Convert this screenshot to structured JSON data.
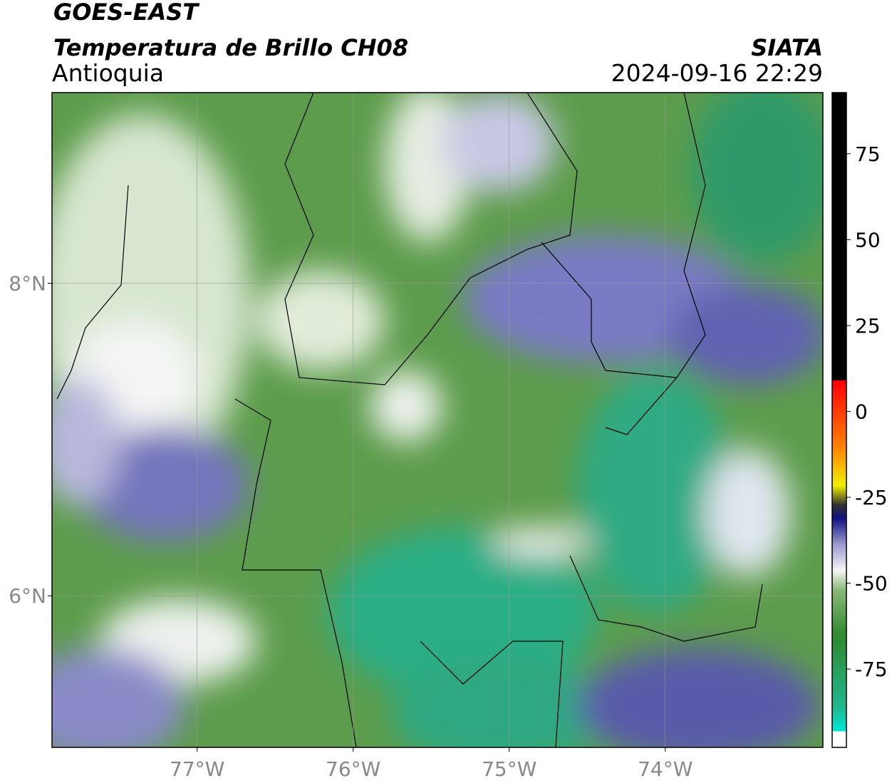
{
  "header": {
    "satellite": "GOES-EAST",
    "product": "Temperatura de Brillo CH08",
    "region": "Antioquia",
    "agency": "SIATA",
    "datetime": "2024-09-16 22:29"
  },
  "map": {
    "latlim": [
      5.03,
      9.22
    ],
    "lonlim": [
      -77.93,
      -72.99
    ],
    "lat_ticks": [
      {
        "value": 8,
        "label": "8°N"
      },
      {
        "value": 6,
        "label": "6°N"
      }
    ],
    "lon_ticks": [
      {
        "value": -77,
        "label": "77°W"
      },
      {
        "value": -76,
        "label": "76°W"
      },
      {
        "value": -75,
        "label": "75°W"
      },
      {
        "value": -74,
        "label": "74°W"
      }
    ],
    "grid": true
  },
  "colorbar": {
    "range": [
      -97.8,
      92.8
    ],
    "ticks": [
      75,
      50,
      25,
      0,
      -25,
      -50,
      -75
    ]
  }
}
